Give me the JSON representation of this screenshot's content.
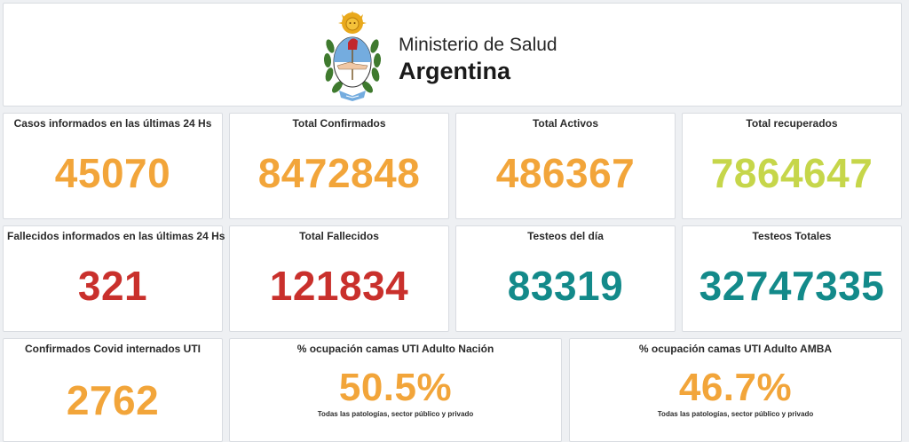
{
  "header": {
    "ministry": "Ministerio de Salud",
    "country": "Argentina"
  },
  "colors": {
    "orange": "#f2a53a",
    "green": "#c6d64a",
    "red": "#c9302c",
    "teal": "#138a8a"
  },
  "cards": {
    "casos24": {
      "title": "Casos informados en las últimas 24 Hs",
      "value": "45070"
    },
    "confirmados": {
      "title": "Total Confirmados",
      "value": "8472848"
    },
    "activos": {
      "title": "Total Activos",
      "value": "486367"
    },
    "recuperados": {
      "title": "Total recuperados",
      "value": "7864647"
    },
    "fallecidos24": {
      "title": "Fallecidos informados en las últimas 24 Hs",
      "value": "321"
    },
    "fallecidos": {
      "title": "Total Fallecidos",
      "value": "121834"
    },
    "testeosDia": {
      "title": "Testeos del día",
      "value": "83319"
    },
    "testeosTotales": {
      "title": "Testeos Totales",
      "value": "32747335"
    },
    "internadosUti": {
      "title": "Confirmados Covid internados UTI",
      "value": "2762"
    },
    "utiNacion": {
      "title": "% ocupación camas UTI Adulto Nación",
      "value": "50.5%",
      "sub": "Todas las patologías, sector público y privado"
    },
    "utiAmba": {
      "title": "% ocupación camas UTI Adulto AMBA",
      "value": "46.7%",
      "sub": "Todas las patologías, sector público y privado"
    }
  }
}
